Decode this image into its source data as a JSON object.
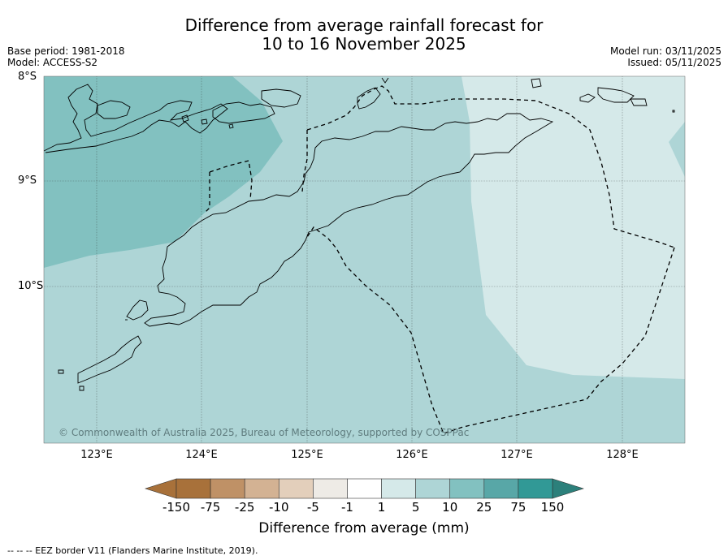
{
  "title": {
    "line1": "Difference from average rainfall forecast for",
    "line2": "10 to 16 November 2025"
  },
  "meta_left": {
    "base_period": "Base period: 1981-2018",
    "model": "Model: ACCESS-S2"
  },
  "meta_right": {
    "model_run": "Model run: 03/11/2025",
    "issued": "Issued: 05/11/2025"
  },
  "map": {
    "lat_labels": [
      "8°S",
      "9°S",
      "10°S"
    ],
    "lon_labels": [
      "123°E",
      "124°E",
      "125°E",
      "126°E",
      "127°E",
      "128°E"
    ],
    "copyright": "© Commonwealth of Australia 2025, Bureau of Meteorology, supported by COSPPac",
    "region_colors": {
      "10_to_25": "#82c1c0",
      "5_to_10": "#aed5d6",
      "1_to_5": "#d5e9e9"
    }
  },
  "colorbar": {
    "ticks": [
      "-150",
      "-75",
      "-25",
      "-10",
      "-5",
      "-1",
      "1",
      "5",
      "10",
      "25",
      "75",
      "150"
    ],
    "colors": [
      "#a8713a",
      "#bf9166",
      "#d3b293",
      "#e3cfbb",
      "#eeebe6",
      "#ffffff",
      "#d5e9e9",
      "#aed5d6",
      "#82c1c0",
      "#58a7a7",
      "#319996"
    ],
    "under_color": "#a8713a",
    "over_color": "#2c807b",
    "label": "Difference from average (mm)"
  },
  "footer": {
    "legend": "--  --  -- EEZ border V11 (Flanders Marine Institute, 2019)."
  }
}
